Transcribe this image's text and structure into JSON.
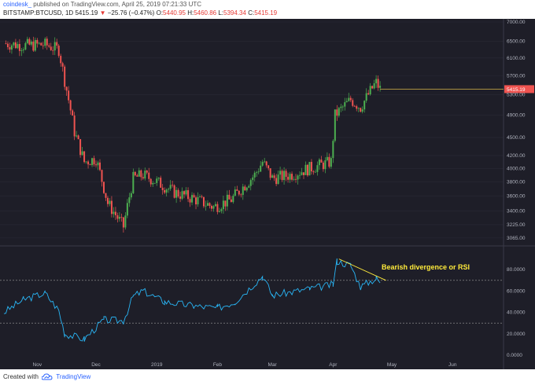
{
  "header": {
    "user": "coindesk_",
    "published": "published on TradingView.com, April 25, 2019 07:21:33 UTC",
    "symbol": "BITSTAMP:BTCUSD, 1D",
    "last": "5415.19",
    "change": "−25.76 (−0.47%)",
    "o_label": "O:",
    "o_val": "5440.95",
    "h_label": "H:",
    "h_val": "5460.86",
    "l_label": "L:",
    "l_val": "5394.34",
    "c_label": "C:",
    "c_val": "5415.19"
  },
  "price_axis": [
    "7000.00",
    "6500.00",
    "6100.00",
    "5700.00",
    "5300.00",
    "4900.00",
    "4500.00",
    "4200.00",
    "4000.00",
    "3800.00",
    "3600.00",
    "3400.00",
    "3225.00",
    "3065.00"
  ],
  "price_tag": "5415.19",
  "rsi_axis": [
    "80.0000",
    "60.0000",
    "40.0000",
    "20.0000",
    "0.0000"
  ],
  "time_axis": [
    "Nov",
    "Dec",
    "2019",
    "Feb",
    "Mar",
    "Apr",
    "May",
    "Jun"
  ],
  "annotation": "Bearish divergence or RSI",
  "footer": {
    "created_with": "Created with",
    "brand": "TradingView"
  },
  "colors": {
    "bg": "#1e1e28",
    "up": "#4caf50",
    "down": "#ef5350",
    "rsi": "#29b6f6",
    "annotation": "#ffeb3b"
  },
  "chart_data": {
    "type": "candlestick",
    "symbol": "BITSTAMP:BTCUSD",
    "interval": "1D",
    "price_ylim": [
      3000,
      7000
    ],
    "last_price": 5415.19,
    "price_trend": [
      {
        "date": "2018-10-15",
        "close": 6450
      },
      {
        "date": "2018-10-25",
        "close": 6400
      },
      {
        "date": "2018-11-05",
        "close": 6420
      },
      {
        "date": "2018-11-12",
        "close": 6300
      },
      {
        "date": "2018-11-15",
        "close": 5600
      },
      {
        "date": "2018-11-20",
        "close": 4600
      },
      {
        "date": "2018-11-25",
        "close": 4100
      },
      {
        "date": "2018-12-01",
        "close": 4150
      },
      {
        "date": "2018-12-07",
        "close": 3500
      },
      {
        "date": "2018-12-15",
        "close": 3200
      },
      {
        "date": "2018-12-20",
        "close": 3850
      },
      {
        "date": "2018-12-25",
        "close": 3900
      },
      {
        "date": "2019-01-01",
        "close": 3800
      },
      {
        "date": "2019-01-10",
        "close": 3650
      },
      {
        "date": "2019-01-20",
        "close": 3560
      },
      {
        "date": "2019-01-30",
        "close": 3450
      },
      {
        "date": "2019-02-08",
        "close": 3550
      },
      {
        "date": "2019-02-20",
        "close": 3900
      },
      {
        "date": "2019-02-24",
        "close": 4100
      },
      {
        "date": "2019-03-01",
        "close": 3850
      },
      {
        "date": "2019-03-10",
        "close": 3900
      },
      {
        "date": "2019-03-20",
        "close": 4000
      },
      {
        "date": "2019-03-31",
        "close": 4100
      },
      {
        "date": "2019-04-02",
        "close": 4900
      },
      {
        "date": "2019-04-10",
        "close": 5200
      },
      {
        "date": "2019-04-15",
        "close": 5050
      },
      {
        "date": "2019-04-22",
        "close": 5500
      },
      {
        "date": "2019-04-23",
        "close": 5550
      },
      {
        "date": "2019-04-25",
        "close": 5415.19
      }
    ],
    "rsi_ylim": [
      0,
      100
    ],
    "rsi_levels": [
      70,
      30
    ],
    "rsi": [
      {
        "date": "2018-10-15",
        "value": 40
      },
      {
        "date": "2018-10-25",
        "value": 52
      },
      {
        "date": "2018-11-05",
        "value": 58
      },
      {
        "date": "2018-11-12",
        "value": 42
      },
      {
        "date": "2018-11-15",
        "value": 20
      },
      {
        "date": "2018-11-25",
        "value": 15
      },
      {
        "date": "2018-12-05",
        "value": 33
      },
      {
        "date": "2018-12-15",
        "value": 32
      },
      {
        "date": "2018-12-20",
        "value": 55
      },
      {
        "date": "2018-12-25",
        "value": 60
      },
      {
        "date": "2019-01-05",
        "value": 50
      },
      {
        "date": "2019-01-20",
        "value": 46
      },
      {
        "date": "2019-02-01",
        "value": 44
      },
      {
        "date": "2019-02-10",
        "value": 50
      },
      {
        "date": "2019-02-24",
        "value": 74
      },
      {
        "date": "2019-03-01",
        "value": 56
      },
      {
        "date": "2019-03-20",
        "value": 62
      },
      {
        "date": "2019-04-01",
        "value": 66
      },
      {
        "date": "2019-04-03",
        "value": 88
      },
      {
        "date": "2019-04-10",
        "value": 84
      },
      {
        "date": "2019-04-15",
        "value": 64
      },
      {
        "date": "2019-04-23",
        "value": 72
      },
      {
        "date": "2019-04-25",
        "value": 68
      }
    ]
  }
}
